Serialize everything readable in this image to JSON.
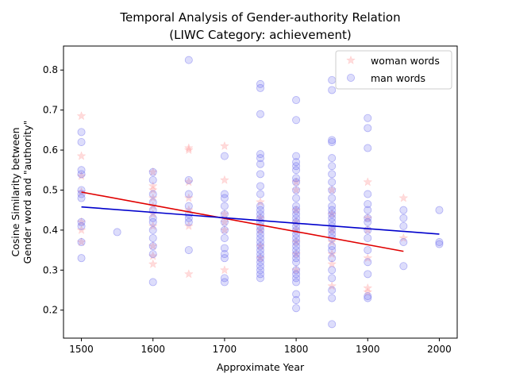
{
  "chart_data": {
    "type": "scatter",
    "title": "Temporal Analysis of Gender-authority Relation",
    "subtitle": "(LIWC Category: achievement)",
    "xlabel": "Approximate Year",
    "ylabel_line1": "Cosine Similarity between",
    "ylabel_line2": "Gender word and \"authority\"",
    "xlim": [
      1475,
      2025
    ],
    "ylim": [
      0.13,
      0.86
    ],
    "xticks": [
      1500,
      1600,
      1700,
      1800,
      1900,
      2000
    ],
    "yticks": [
      0.2,
      0.3,
      0.4,
      0.5,
      0.6,
      0.7,
      0.8
    ],
    "xtick_labels": [
      "1500",
      "1600",
      "1700",
      "1800",
      "1900",
      "2000"
    ],
    "ytick_labels": [
      "0.2",
      "0.3",
      "0.4",
      "0.5",
      "0.6",
      "0.7",
      "0.8"
    ],
    "grid": false,
    "legend_position": "top-right",
    "series": [
      {
        "name": "woman words",
        "marker": "star",
        "color": "#ff9999",
        "points": [
          [
            1500,
            0.685
          ],
          [
            1500,
            0.585
          ],
          [
            1500,
            0.535
          ],
          [
            1500,
            0.495
          ],
          [
            1500,
            0.42
          ],
          [
            1500,
            0.4
          ],
          [
            1500,
            0.37
          ],
          [
            1600,
            0.545
          ],
          [
            1600,
            0.51
          ],
          [
            1600,
            0.5
          ],
          [
            1600,
            0.48
          ],
          [
            1600,
            0.46
          ],
          [
            1600,
            0.44
          ],
          [
            1600,
            0.41
          ],
          [
            1600,
            0.36
          ],
          [
            1600,
            0.335
          ],
          [
            1600,
            0.315
          ],
          [
            1650,
            0.605
          ],
          [
            1650,
            0.6
          ],
          [
            1650,
            0.52
          ],
          [
            1650,
            0.48
          ],
          [
            1650,
            0.45
          ],
          [
            1650,
            0.41
          ],
          [
            1650,
            0.29
          ],
          [
            1700,
            0.61
          ],
          [
            1700,
            0.525
          ],
          [
            1700,
            0.44
          ],
          [
            1700,
            0.42
          ],
          [
            1700,
            0.4
          ],
          [
            1700,
            0.3
          ],
          [
            1750,
            0.47
          ],
          [
            1750,
            0.43
          ],
          [
            1750,
            0.4
          ],
          [
            1750,
            0.36
          ],
          [
            1750,
            0.33
          ],
          [
            1800,
            0.52
          ],
          [
            1800,
            0.5
          ],
          [
            1800,
            0.45
          ],
          [
            1800,
            0.42
          ],
          [
            1800,
            0.4
          ],
          [
            1800,
            0.37
          ],
          [
            1800,
            0.34
          ],
          [
            1800,
            0.3
          ],
          [
            1850,
            0.5
          ],
          [
            1850,
            0.44
          ],
          [
            1850,
            0.4
          ],
          [
            1850,
            0.37
          ],
          [
            1850,
            0.34
          ],
          [
            1850,
            0.315
          ],
          [
            1850,
            0.26
          ],
          [
            1900,
            0.52
          ],
          [
            1900,
            0.43
          ],
          [
            1900,
            0.4
          ],
          [
            1900,
            0.33
          ],
          [
            1900,
            0.255
          ],
          [
            1900,
            0.245
          ],
          [
            1950,
            0.48
          ],
          [
            1950,
            0.38
          ]
        ]
      },
      {
        "name": "man words",
        "marker": "circle",
        "color": "#6666ee",
        "points": [
          [
            1500,
            0.645
          ],
          [
            1500,
            0.62
          ],
          [
            1500,
            0.55
          ],
          [
            1500,
            0.54
          ],
          [
            1500,
            0.5
          ],
          [
            1500,
            0.49
          ],
          [
            1500,
            0.48
          ],
          [
            1500,
            0.42
          ],
          [
            1500,
            0.41
          ],
          [
            1500,
            0.37
          ],
          [
            1500,
            0.33
          ],
          [
            1550,
            0.395
          ],
          [
            1600,
            0.545
          ],
          [
            1600,
            0.525
          ],
          [
            1600,
            0.49
          ],
          [
            1600,
            0.47
          ],
          [
            1600,
            0.45
          ],
          [
            1600,
            0.43
          ],
          [
            1600,
            0.42
          ],
          [
            1600,
            0.4
          ],
          [
            1600,
            0.38
          ],
          [
            1600,
            0.36
          ],
          [
            1600,
            0.34
          ],
          [
            1600,
            0.27
          ],
          [
            1650,
            0.825
          ],
          [
            1650,
            0.525
          ],
          [
            1650,
            0.49
          ],
          [
            1650,
            0.46
          ],
          [
            1650,
            0.44
          ],
          [
            1650,
            0.43
          ],
          [
            1650,
            0.42
          ],
          [
            1650,
            0.35
          ],
          [
            1700,
            0.585
          ],
          [
            1700,
            0.49
          ],
          [
            1700,
            0.48
          ],
          [
            1700,
            0.46
          ],
          [
            1700,
            0.44
          ],
          [
            1700,
            0.42
          ],
          [
            1700,
            0.4
          ],
          [
            1700,
            0.38
          ],
          [
            1700,
            0.355
          ],
          [
            1700,
            0.34
          ],
          [
            1700,
            0.33
          ],
          [
            1700,
            0.28
          ],
          [
            1700,
            0.27
          ],
          [
            1750,
            0.765
          ],
          [
            1750,
            0.755
          ],
          [
            1750,
            0.69
          ],
          [
            1750,
            0.59
          ],
          [
            1750,
            0.58
          ],
          [
            1750,
            0.565
          ],
          [
            1750,
            0.54
          ],
          [
            1750,
            0.51
          ],
          [
            1750,
            0.49
          ],
          [
            1750,
            0.46
          ],
          [
            1750,
            0.45
          ],
          [
            1750,
            0.44
          ],
          [
            1750,
            0.43
          ],
          [
            1750,
            0.42
          ],
          [
            1750,
            0.41
          ],
          [
            1750,
            0.4
          ],
          [
            1750,
            0.39
          ],
          [
            1750,
            0.38
          ],
          [
            1750,
            0.37
          ],
          [
            1750,
            0.36
          ],
          [
            1750,
            0.35
          ],
          [
            1750,
            0.34
          ],
          [
            1750,
            0.33
          ],
          [
            1750,
            0.32
          ],
          [
            1750,
            0.31
          ],
          [
            1750,
            0.3
          ],
          [
            1750,
            0.29
          ],
          [
            1750,
            0.28
          ],
          [
            1800,
            0.725
          ],
          [
            1800,
            0.675
          ],
          [
            1800,
            0.585
          ],
          [
            1800,
            0.57
          ],
          [
            1800,
            0.56
          ],
          [
            1800,
            0.55
          ],
          [
            1800,
            0.53
          ],
          [
            1800,
            0.52
          ],
          [
            1800,
            0.5
          ],
          [
            1800,
            0.48
          ],
          [
            1800,
            0.46
          ],
          [
            1800,
            0.45
          ],
          [
            1800,
            0.44
          ],
          [
            1800,
            0.43
          ],
          [
            1800,
            0.42
          ],
          [
            1800,
            0.41
          ],
          [
            1800,
            0.4
          ],
          [
            1800,
            0.39
          ],
          [
            1800,
            0.38
          ],
          [
            1800,
            0.37
          ],
          [
            1800,
            0.36
          ],
          [
            1800,
            0.35
          ],
          [
            1800,
            0.34
          ],
          [
            1800,
            0.33
          ],
          [
            1800,
            0.32
          ],
          [
            1800,
            0.3
          ],
          [
            1800,
            0.29
          ],
          [
            1800,
            0.28
          ],
          [
            1800,
            0.27
          ],
          [
            1800,
            0.24
          ],
          [
            1800,
            0.225
          ],
          [
            1800,
            0.205
          ],
          [
            1850,
            0.775
          ],
          [
            1850,
            0.75
          ],
          [
            1850,
            0.625
          ],
          [
            1850,
            0.62
          ],
          [
            1850,
            0.58
          ],
          [
            1850,
            0.56
          ],
          [
            1850,
            0.54
          ],
          [
            1850,
            0.52
          ],
          [
            1850,
            0.5
          ],
          [
            1850,
            0.48
          ],
          [
            1850,
            0.46
          ],
          [
            1850,
            0.45
          ],
          [
            1850,
            0.44
          ],
          [
            1850,
            0.43
          ],
          [
            1850,
            0.42
          ],
          [
            1850,
            0.41
          ],
          [
            1850,
            0.4
          ],
          [
            1850,
            0.39
          ],
          [
            1850,
            0.38
          ],
          [
            1850,
            0.36
          ],
          [
            1850,
            0.35
          ],
          [
            1850,
            0.33
          ],
          [
            1850,
            0.3
          ],
          [
            1850,
            0.28
          ],
          [
            1850,
            0.25
          ],
          [
            1850,
            0.23
          ],
          [
            1850,
            0.165
          ],
          [
            1900,
            0.68
          ],
          [
            1900,
            0.655
          ],
          [
            1900,
            0.605
          ],
          [
            1900,
            0.49
          ],
          [
            1900,
            0.465
          ],
          [
            1900,
            0.45
          ],
          [
            1900,
            0.43
          ],
          [
            1900,
            0.42
          ],
          [
            1900,
            0.4
          ],
          [
            1900,
            0.38
          ],
          [
            1900,
            0.35
          ],
          [
            1900,
            0.32
          ],
          [
            1900,
            0.29
          ],
          [
            1900,
            0.235
          ],
          [
            1900,
            0.23
          ],
          [
            1950,
            0.45
          ],
          [
            1950,
            0.43
          ],
          [
            1950,
            0.41
          ],
          [
            1950,
            0.37
          ],
          [
            1950,
            0.31
          ],
          [
            2000,
            0.45
          ],
          [
            2000,
            0.37
          ],
          [
            2000,
            0.365
          ]
        ]
      }
    ],
    "trend_lines": [
      {
        "series": "woman words",
        "color": "#e00000",
        "x": [
          1500,
          1950
        ],
        "y": [
          0.495,
          0.347
        ]
      },
      {
        "series": "man words",
        "color": "#0000cc",
        "x": [
          1500,
          2000
        ],
        "y": [
          0.458,
          0.39
        ]
      }
    ]
  }
}
